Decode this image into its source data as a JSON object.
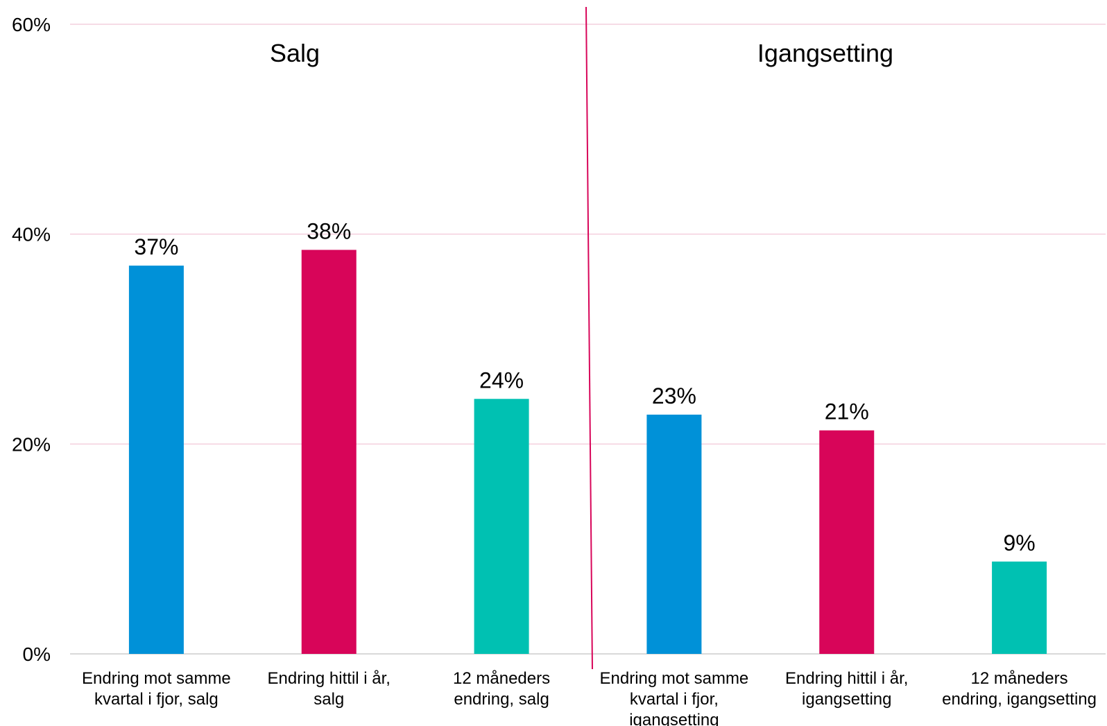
{
  "chart_data": {
    "type": "bar",
    "categories": [
      [
        "Endring mot samme",
        "kvartal i fjor, salg"
      ],
      [
        "Endring hittil i år,",
        "salg"
      ],
      [
        "12 måneders",
        "endring, salg"
      ],
      [
        "Endring mot samme",
        "kvartal i fjor,",
        "igangsetting"
      ],
      [
        "Endring hittil i år,",
        "igangsetting"
      ],
      [
        "12 måneders",
        "endring, igangsetting"
      ]
    ],
    "values": [
      0.37,
      0.385,
      0.243,
      0.228,
      0.213,
      0.088
    ],
    "value_labels": [
      "37%",
      "38%",
      "24%",
      "23%",
      "21%",
      "9%"
    ],
    "bar_colors": [
      "#0091d8",
      "#d80559",
      "#00c1b2",
      "#0091d8",
      "#d80559",
      "#00c1b2"
    ],
    "groups": [
      "Salg",
      "Igangsetting"
    ],
    "y_ticks": [
      {
        "value": 0,
        "label": "0%"
      },
      {
        "value": 0.2,
        "label": "20%"
      },
      {
        "value": 0.4,
        "label": "40%"
      },
      {
        "value": 0.6,
        "label": "60%"
      }
    ],
    "ylim": [
      0,
      0.6
    ],
    "grid": true,
    "gridline_color": "#f4cfdd",
    "divider_color": "#d80559",
    "title": "",
    "xlabel": "",
    "ylabel": ""
  }
}
